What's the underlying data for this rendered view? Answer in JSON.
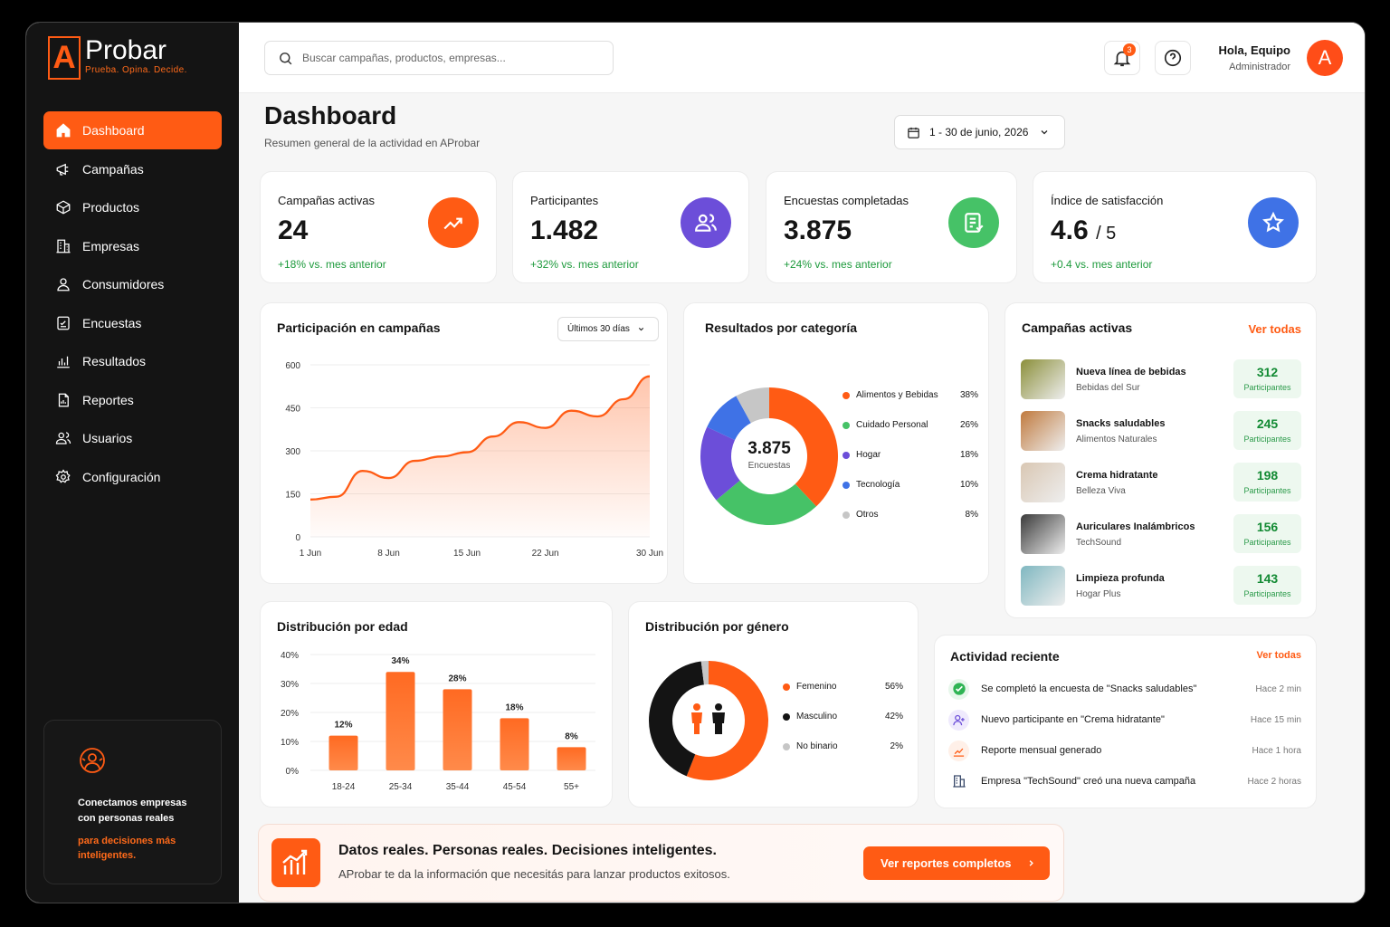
{
  "brand": {
    "letter": "A",
    "name": "Probar",
    "tagline": "Prueba. Opina. Decide."
  },
  "sidebar": {
    "items": [
      {
        "label": "Dashboard",
        "active": true
      },
      {
        "label": "Campañas"
      },
      {
        "label": "Productos"
      },
      {
        "label": "Empresas"
      },
      {
        "label": "Consumidores"
      },
      {
        "label": "Encuestas"
      },
      {
        "label": "Resultados"
      },
      {
        "label": "Reportes"
      },
      {
        "label": "Usuarios"
      },
      {
        "label": "Configuración"
      }
    ],
    "promo": {
      "text": "Conectamos empresas con personas reales",
      "highlight": "para decisiones más inteligentes."
    }
  },
  "header": {
    "search_placeholder": "Buscar campañas, productos, empresas...",
    "notifications": "3",
    "user_greeting": "Hola, Equipo",
    "user_role": "Administrador",
    "avatar_letter": "A"
  },
  "page": {
    "title": "Dashboard",
    "subtitle": "Resumen general de la actividad en AProbar",
    "date_range": "1 - 30 de junio, 2026"
  },
  "kpis": [
    {
      "label": "Campañas activas",
      "value": "24",
      "delta": "+18% vs. mes anterior",
      "color": "#ff5b14"
    },
    {
      "label": "Participantes",
      "value": "1.482",
      "delta": "+32% vs. mes anterior",
      "color": "#6c4ed9"
    },
    {
      "label": "Encuestas completadas",
      "value": "3.875",
      "delta": "+24% vs. mes anterior",
      "color": "#46c267"
    },
    {
      "label": "Índice de satisfacción",
      "value": "4.6",
      "value_suffix": "/ 5",
      "delta": "+0.4 vs. mes anterior",
      "color": "#3f72e6"
    }
  ],
  "participation": {
    "title": "Participación en campañas",
    "range": "Últimos 30 días"
  },
  "categories": {
    "title": "Resultados por categoría",
    "center_value": "3.875",
    "center_label": "Encuestas"
  },
  "active_campaigns": {
    "title": "Campañas activas",
    "link": "Ver todas",
    "participants_label": "Participantes",
    "items": [
      {
        "name": "Nueva línea de bebidas",
        "company": "Bebidas del Sur",
        "count": "312"
      },
      {
        "name": "Snacks saludables",
        "company": "Alimentos Naturales",
        "count": "245"
      },
      {
        "name": "Crema hidratante",
        "company": "Belleza Viva",
        "count": "198"
      },
      {
        "name": "Auriculares Inalámbricos",
        "company": "TechSound",
        "count": "156"
      },
      {
        "name": "Limpieza profunda",
        "company": "Hogar Plus",
        "count": "143"
      }
    ]
  },
  "age": {
    "title": "Distribución por edad"
  },
  "gender": {
    "title": "Distribución por género"
  },
  "activity": {
    "title": "Actividad reciente",
    "link": "Ver todas",
    "items": [
      {
        "text": "Se completó la encuesta de \"Snacks saludables\"",
        "time": "Hace 2 min"
      },
      {
        "text": "Nuevo participante en \"Crema hidratante\"",
        "time": "Hace 15 min"
      },
      {
        "text": "Reporte mensual generado",
        "time": "Hace 1 hora"
      },
      {
        "text": "Empresa \"TechSound\" creó una nueva campaña",
        "time": "Hace 2 horas"
      }
    ]
  },
  "banner": {
    "title": "Datos reales. Personas reales. Decisiones inteligentes.",
    "subtitle": "AProbar te da la información que necesitás para lanzar productos exitosos.",
    "button": "Ver reportes completos"
  },
  "chart_data": [
    {
      "type": "area",
      "title": "Participación en campañas",
      "x": [
        "1 Jun",
        "3 Jun",
        "5 Jun",
        "8 Jun",
        "10 Jun",
        "12 Jun",
        "15 Jun",
        "17 Jun",
        "19 Jun",
        "22 Jun",
        "24 Jun",
        "26 Jun",
        "28 Jun",
        "30 Jun"
      ],
      "y": [
        130,
        140,
        230,
        205,
        265,
        280,
        295,
        350,
        400,
        380,
        440,
        420,
        480,
        560
      ],
      "xticks": [
        "1 Jun",
        "8 Jun",
        "15 Jun",
        "22 Jun",
        "30 Jun"
      ],
      "yticks": [
        0,
        150,
        300,
        450,
        600
      ],
      "ylim": [
        0,
        600
      ],
      "color": "#ff5b14"
    },
    {
      "type": "pie",
      "title": "Resultados por categoría",
      "labels": [
        "Alimentos y Bebidas",
        "Cuidado Personal",
        "Hogar",
        "Tecnología",
        "Otros"
      ],
      "values": [
        38,
        26,
        18,
        10,
        8
      ],
      "value_labels": [
        "38%",
        "26%",
        "18%",
        "10%",
        "8%"
      ],
      "colors": [
        "#ff5b14",
        "#46c267",
        "#6c4ed9",
        "#3f72e6",
        "#c6c6c6"
      ]
    },
    {
      "type": "bar",
      "title": "Distribución por edad",
      "categories": [
        "18-24",
        "25-34",
        "35-44",
        "45-54",
        "55+"
      ],
      "values": [
        12,
        34,
        28,
        18,
        8
      ],
      "value_labels": [
        "12%",
        "34%",
        "28%",
        "18%",
        "8%"
      ],
      "yticks": [
        "0%",
        "10%",
        "20%",
        "30%",
        "40%"
      ],
      "ylim": [
        0,
        40
      ],
      "color": "#ff5b14"
    },
    {
      "type": "pie",
      "title": "Distribución por género",
      "labels": [
        "Femenino",
        "Masculino",
        "No binario"
      ],
      "values": [
        56,
        42,
        2
      ],
      "value_labels": [
        "56%",
        "42%",
        "2%"
      ],
      "colors": [
        "#ff5b14",
        "#141414",
        "#c6c6c6"
      ]
    }
  ]
}
